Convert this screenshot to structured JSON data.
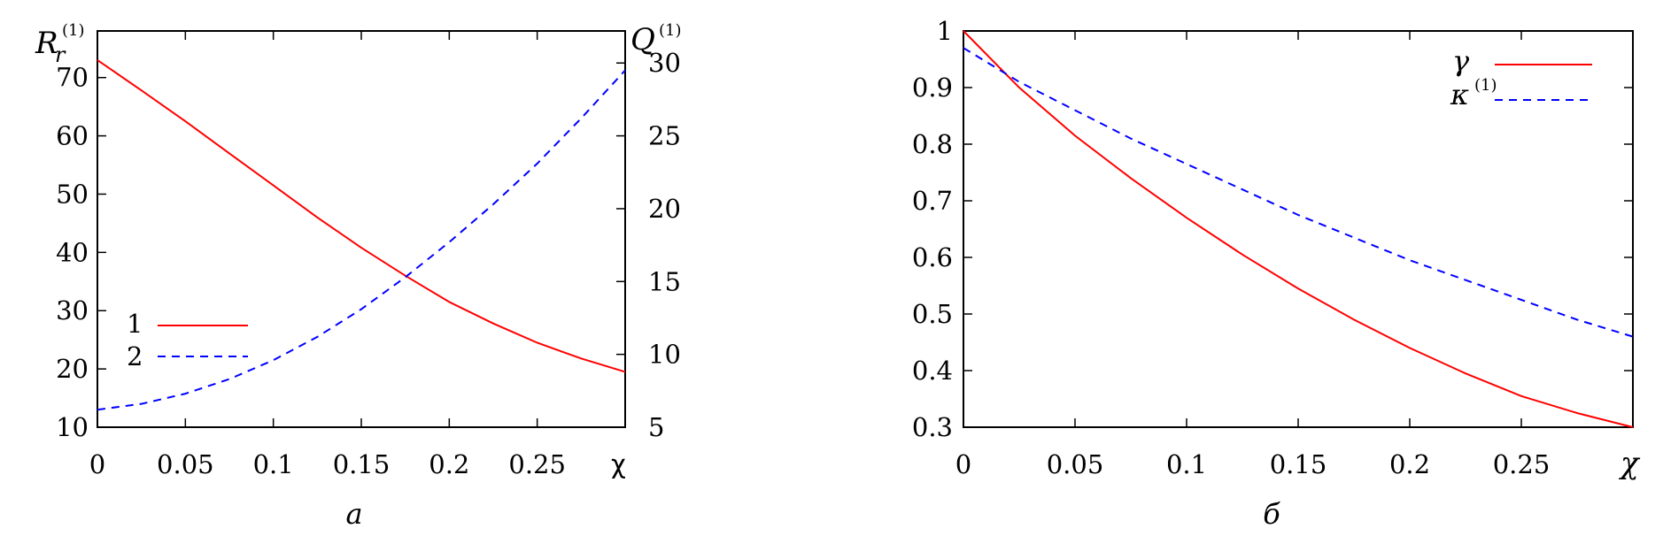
{
  "chart_data": [
    {
      "type": "line",
      "panel_label": "а",
      "xlabel": "χ",
      "x_ticks": [
        "0",
        "0.05",
        "0.1",
        "0.15",
        "0.2",
        "0.25"
      ],
      "xlim": [
        0,
        0.3
      ],
      "ylabel_left": {
        "base": "R",
        "sub": "r",
        "sup": "(1)"
      },
      "ylabel_right": {
        "base": "Q",
        "sup": "(1)"
      },
      "ylim_left": [
        10,
        78
      ],
      "ylim_right": [
        5,
        32.2
      ],
      "y_ticks_left": [
        "10",
        "20",
        "30",
        "40",
        "50",
        "60",
        "70"
      ],
      "y_ticks_right": [
        "5",
        "10",
        "15",
        "20",
        "25",
        "30"
      ],
      "legend_position": "lower-left",
      "series": [
        {
          "name": "1",
          "axis": "left",
          "color": "#ff0000",
          "dash": "solid",
          "x": [
            0,
            0.025,
            0.05,
            0.075,
            0.1,
            0.125,
            0.15,
            0.175,
            0.2,
            0.225,
            0.25,
            0.275,
            0.3
          ],
          "y": [
            73,
            67.8,
            62.5,
            57,
            51.5,
            46,
            40.8,
            36,
            31.5,
            27.8,
            24.5,
            21.8,
            19.5
          ]
        },
        {
          "name": "2",
          "axis": "right",
          "color": "#0000ff",
          "dash": "dashed",
          "x": [
            0,
            0.025,
            0.05,
            0.075,
            0.1,
            0.125,
            0.15,
            0.175,
            0.2,
            0.225,
            0.25,
            0.275,
            0.3
          ],
          "y": [
            6.2,
            6.6,
            7.3,
            8.3,
            9.6,
            11.2,
            13.1,
            15.3,
            17.7,
            20.3,
            23.1,
            26.2,
            29.5
          ]
        }
      ]
    },
    {
      "type": "line",
      "panel_label": "б",
      "xlabel": "χ",
      "x_ticks": [
        "0",
        "0.05",
        "0.1",
        "0.15",
        "0.2",
        "0.25"
      ],
      "xlim": [
        0,
        0.3
      ],
      "ylim": [
        0.3,
        1.0
      ],
      "y_ticks": [
        "0.3",
        "0.4",
        "0.5",
        "0.6",
        "0.7",
        "0.8",
        "0.9",
        "1"
      ],
      "legend_position": "top-right",
      "series": [
        {
          "name": "γ",
          "color": "#ff0000",
          "dash": "solid",
          "x": [
            0,
            0.025,
            0.05,
            0.075,
            0.1,
            0.125,
            0.15,
            0.175,
            0.2,
            0.225,
            0.25,
            0.275,
            0.3
          ],
          "y": [
            1.0,
            0.9,
            0.815,
            0.74,
            0.67,
            0.605,
            0.545,
            0.49,
            0.44,
            0.395,
            0.355,
            0.325,
            0.3
          ]
        },
        {
          "name": "κ",
          "name_sup": "(1)",
          "color": "#0000ff",
          "dash": "dashed",
          "x": [
            0,
            0.025,
            0.05,
            0.075,
            0.1,
            0.125,
            0.15,
            0.175,
            0.2,
            0.225,
            0.25,
            0.275,
            0.3
          ],
          "y": [
            0.97,
            0.91,
            0.86,
            0.81,
            0.765,
            0.72,
            0.675,
            0.635,
            0.595,
            0.56,
            0.525,
            0.49,
            0.46
          ]
        }
      ]
    }
  ]
}
